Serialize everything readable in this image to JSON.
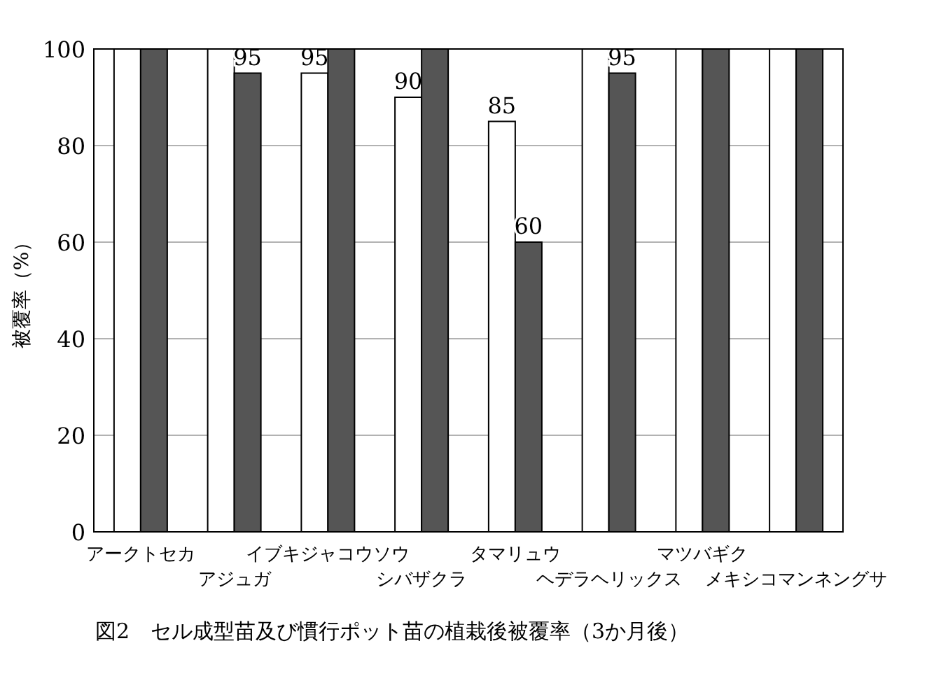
{
  "chart_data": {
    "type": "bar",
    "title": "図2　セル成型苗及び慣行ポット苗の植栽後被覆率（3か月後）",
    "ylabel": "被覆率（%）",
    "categories": [
      "アークトセカ",
      "アジュガ",
      "イブキジャコウソウ",
      "シバザクラ",
      "タマリュウ",
      "ヘデラヘリックス",
      "マツバギク",
      "メキシコマンネングサ"
    ],
    "series": [
      {
        "color": "#ffffff",
        "values": [
          100,
          100,
          95,
          90,
          85,
          100,
          100,
          100
        ],
        "value_labels": [
          null,
          null,
          "95",
          "90",
          "85",
          null,
          null,
          null
        ]
      },
      {
        "color": "#555555",
        "values": [
          100,
          95,
          100,
          100,
          60,
          95,
          100,
          100
        ],
        "value_labels": [
          null,
          "95",
          null,
          null,
          "60",
          "95",
          null,
          null
        ]
      }
    ],
    "ylim": [
      0,
      100
    ],
    "yticks": [
      0,
      20,
      40,
      60,
      80,
      100
    ],
    "grid": "y"
  }
}
